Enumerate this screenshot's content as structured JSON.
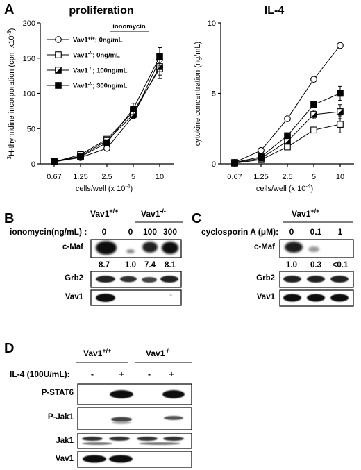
{
  "panels": {
    "A": "A",
    "B": "B",
    "C": "C",
    "D": "D"
  },
  "chart_data": [
    {
      "type": "line",
      "title": "proliferation",
      "xlabel": "cells/well (x 10",
      "xlabel_sup": "-4",
      "xlabel_close": ")",
      "ylabel": "H-thymidine incorporation (cpm x10",
      "ylabel_pre": "3",
      "ylabel_sup": "-3",
      "ylabel_close": ")",
      "x": [
        "0.67",
        "1.25",
        "2.5",
        "5",
        "10"
      ],
      "ylim": [
        0,
        200
      ],
      "yticks": [
        "0",
        "50",
        "100",
        "150",
        "200"
      ],
      "legend_header": "ionomycin",
      "legend_position": "top-left",
      "series": [
        {
          "name": "Vav1",
          "sup": "+/+",
          "rest": "; 0ng/mL",
          "marker": "circle-open",
          "values": [
            3,
            9,
            22,
            68,
            148
          ],
          "err": [
            0,
            0,
            0,
            0,
            6
          ]
        },
        {
          "name": "Vav1",
          "sup": "-/-",
          "rest": "; 0ng/mL",
          "marker": "square-open",
          "values": [
            3,
            13,
            35,
            74,
            135
          ],
          "err": [
            0,
            0,
            0,
            6,
            14
          ]
        },
        {
          "name": "Vav1",
          "sup": "-/-",
          "rest": "; 100ng/mL",
          "marker": "square-half",
          "values": [
            3,
            11,
            33,
            70,
            138
          ],
          "err": [
            0,
            0,
            0,
            5,
            12
          ]
        },
        {
          "name": "Vav1",
          "sup": "-/-",
          "rest": "; 300ng/mL",
          "marker": "square-filled",
          "values": [
            3,
            10,
            30,
            78,
            152
          ],
          "err": [
            0,
            0,
            0,
            8,
            13
          ]
        }
      ]
    },
    {
      "type": "line",
      "title": "IL-4",
      "xlabel": "cells/well (x 10",
      "xlabel_sup": "-4",
      "xlabel_close": ")",
      "ylabel": "cytokine concentration (ng/mL)",
      "x": [
        "0.67",
        "1.25",
        "2.5",
        "5",
        "10"
      ],
      "ylim": [
        0,
        10
      ],
      "yticks": [
        "0",
        "5",
        "10"
      ],
      "series": [
        {
          "marker": "circle-open",
          "values": [
            0.1,
            0.95,
            3.2,
            6.0,
            8.4
          ],
          "err": [
            0,
            0,
            0,
            0,
            0
          ]
        },
        {
          "marker": "square-open",
          "values": [
            0.05,
            0.3,
            1.2,
            2.4,
            2.8
          ],
          "err": [
            0,
            0,
            0,
            0,
            0.6
          ]
        },
        {
          "marker": "square-half",
          "values": [
            0.07,
            0.4,
            1.6,
            3.5,
            3.7
          ],
          "err": [
            0,
            0,
            0,
            0.3,
            0.5
          ]
        },
        {
          "marker": "square-filled",
          "values": [
            0.1,
            0.5,
            2.0,
            4.2,
            5.0
          ],
          "err": [
            0,
            0,
            0,
            0.2,
            0.5
          ]
        }
      ]
    }
  ],
  "blotB": {
    "group_wt": "Vav1",
    "group_wt_sup": "+/+",
    "group_ko": "Vav1",
    "group_ko_sup": "-/-",
    "condition": "ionomycin(ng/mL) :",
    "lanes": [
      "0",
      "0",
      "100",
      "300"
    ],
    "rows": [
      "c-Maf",
      "Grb2",
      "Vav1"
    ],
    "quant": [
      "8.7",
      "1.0",
      "7.4",
      "8.1"
    ]
  },
  "blotC": {
    "group": "Vav1",
    "group_sup": "+/+",
    "condition_pre": "cyclosporin A (",
    "condition_mu": "μ",
    "condition_post": "M):",
    "lanes": [
      "0",
      "0.1",
      "1"
    ],
    "rows": [
      "c-Maf",
      "Grb2",
      "Vav1"
    ],
    "quant": [
      "1.0",
      "0.3",
      "<0.1"
    ]
  },
  "blotD": {
    "group_wt": "Vav1",
    "group_wt_sup": "+/+",
    "group_ko": "Vav1",
    "group_ko_sup": "-/-",
    "condition": "IL-4 (100U/mL):",
    "lanes": [
      "-",
      "+",
      "-",
      "+"
    ],
    "rows": [
      "P-STAT6",
      "P-Jak1",
      "Jak1",
      "Vav1"
    ]
  }
}
